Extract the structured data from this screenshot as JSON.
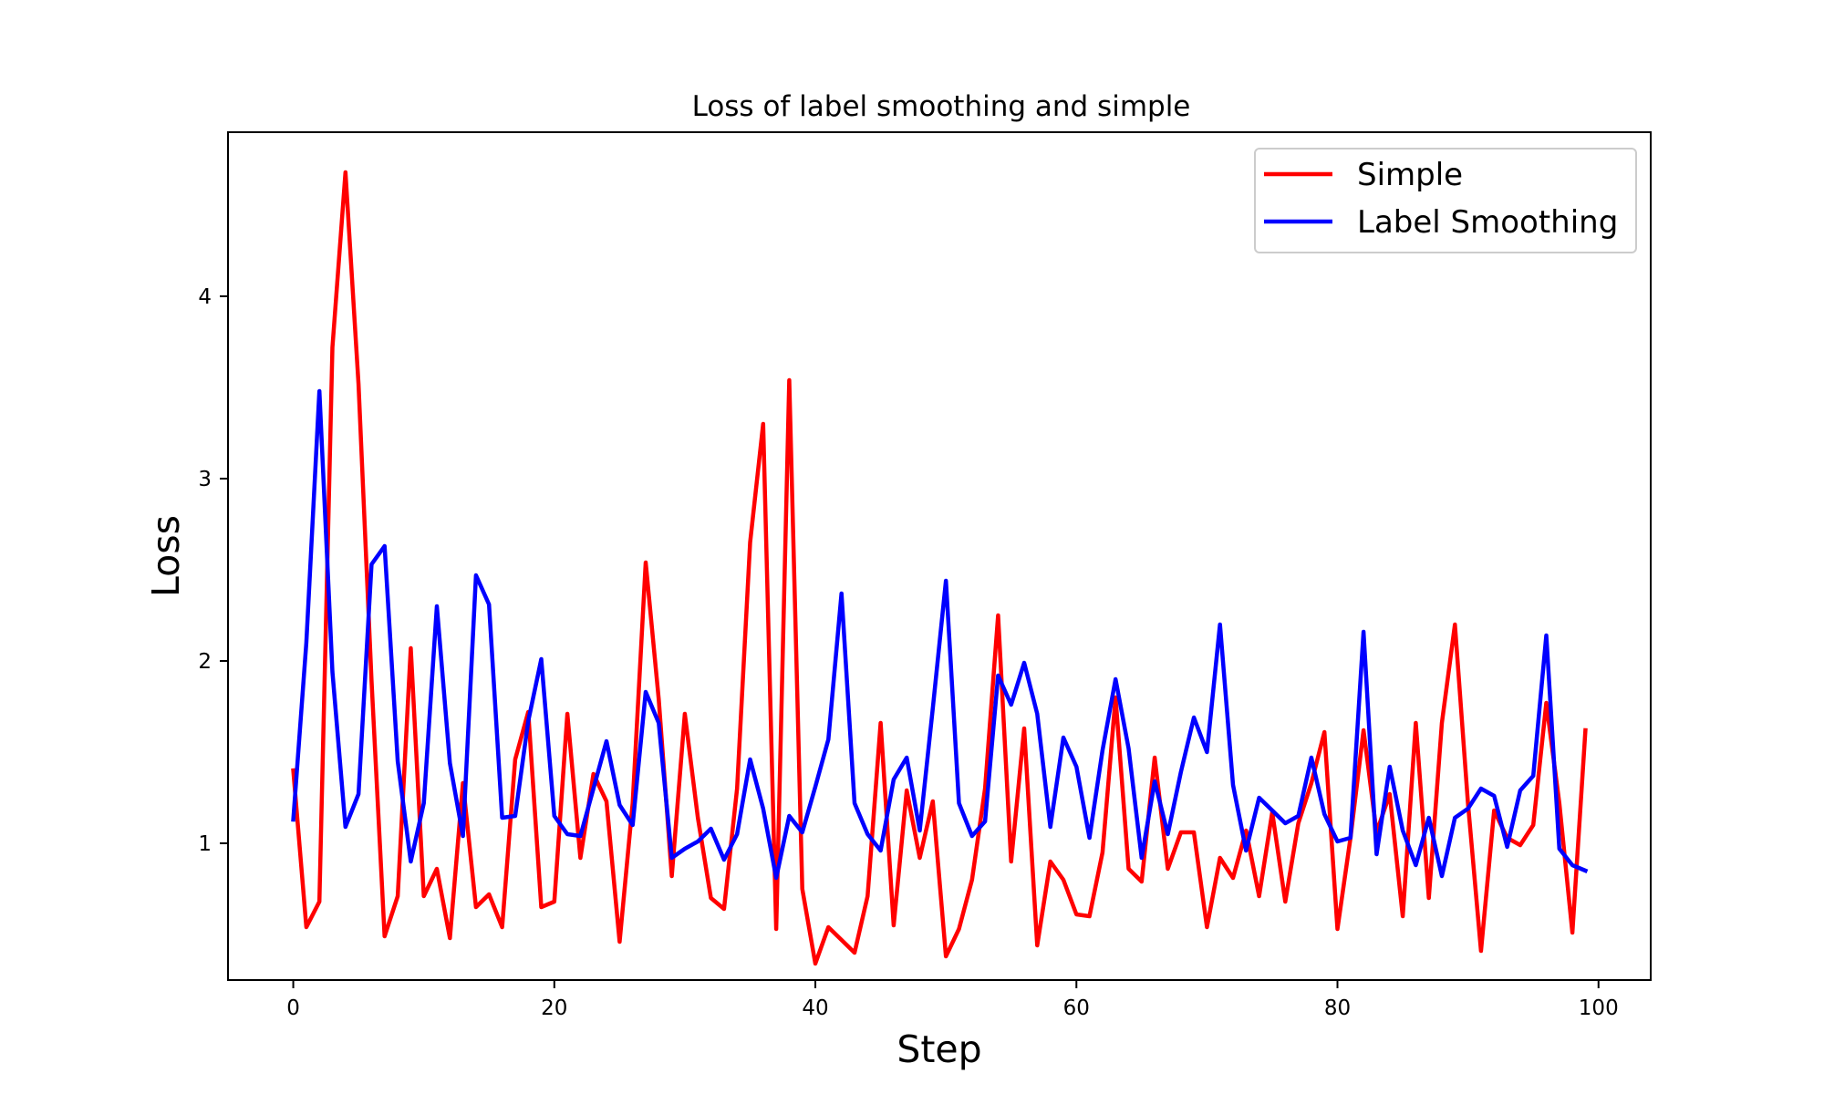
{
  "chart_data": {
    "type": "line",
    "title": "Loss of label smoothing and simple",
    "xlabel": "Step",
    "ylabel": "Loss",
    "xlim": [
      -5,
      104
    ],
    "ylim": [
      0.25,
      4.9
    ],
    "xticks": [
      0,
      20,
      40,
      60,
      80,
      100
    ],
    "yticks": [
      1,
      2,
      3,
      4
    ],
    "grid": false,
    "legend_position": "upper right",
    "series": [
      {
        "name": "Simple",
        "color": "#ff0000",
        "x": [
          0,
          1,
          2,
          3,
          4,
          5,
          6,
          7,
          8,
          9,
          10,
          11,
          12,
          13,
          14,
          15,
          16,
          17,
          18,
          19,
          20,
          21,
          22,
          23,
          24,
          25,
          26,
          27,
          28,
          29,
          30,
          31,
          32,
          33,
          34,
          35,
          36,
          37,
          38,
          39,
          40,
          41,
          42,
          43,
          44,
          45,
          46,
          47,
          48,
          49,
          50,
          51,
          52,
          53,
          54,
          55,
          56,
          57,
          58,
          59,
          60,
          61,
          62,
          63,
          64,
          65,
          66,
          67,
          68,
          69,
          70,
          71,
          72,
          73,
          74,
          75,
          76,
          77,
          78,
          79,
          80,
          81,
          82,
          83,
          84,
          85,
          86,
          87,
          88,
          89,
          90,
          91,
          92,
          93,
          94,
          95,
          96,
          97,
          98,
          99
        ],
        "values": [
          1.4,
          0.54,
          0.68,
          3.72,
          4.68,
          3.52,
          1.89,
          0.49,
          0.71,
          2.07,
          0.71,
          0.86,
          0.48,
          1.33,
          0.65,
          0.72,
          0.54,
          1.46,
          1.72,
          0.65,
          0.68,
          1.71,
          0.92,
          1.38,
          1.23,
          0.46,
          1.22,
          2.54,
          1.79,
          0.82,
          1.71,
          1.14,
          0.7,
          0.64,
          1.3,
          2.65,
          3.3,
          0.53,
          3.54,
          0.75,
          0.34,
          0.54,
          0.47,
          0.4,
          0.71,
          1.66,
          0.55,
          1.29,
          0.92,
          1.23,
          0.38,
          0.53,
          0.8,
          1.3,
          2.25,
          0.9,
          1.63,
          0.44,
          0.9,
          0.8,
          0.61,
          0.6,
          0.95,
          1.8,
          0.86,
          0.79,
          1.47,
          0.86,
          1.06,
          1.06,
          0.54,
          0.92,
          0.81,
          1.07,
          0.71,
          1.17,
          0.68,
          1.11,
          1.33,
          1.61,
          0.53,
          1.03,
          1.62,
          1.06,
          1.27,
          0.6,
          1.66,
          0.7,
          1.66,
          2.2,
          1.22,
          0.41,
          1.18,
          1.03,
          0.99,
          1.1,
          1.77,
          1.22,
          0.51,
          1.62
        ]
      },
      {
        "name": "Label Smoothing",
        "color": "#0000ff",
        "x": [
          0,
          1,
          2,
          3,
          4,
          5,
          6,
          7,
          8,
          9,
          10,
          11,
          12,
          13,
          14,
          15,
          16,
          17,
          18,
          19,
          20,
          21,
          22,
          23,
          24,
          25,
          26,
          27,
          28,
          29,
          30,
          31,
          32,
          33,
          34,
          35,
          36,
          37,
          38,
          39,
          40,
          41,
          42,
          43,
          44,
          45,
          46,
          47,
          48,
          49,
          50,
          51,
          52,
          53,
          54,
          55,
          56,
          57,
          58,
          59,
          60,
          61,
          62,
          63,
          64,
          65,
          66,
          67,
          68,
          69,
          70,
          71,
          72,
          73,
          74,
          75,
          76,
          77,
          78,
          79,
          80,
          81,
          82,
          83,
          84,
          85,
          86,
          87,
          88,
          89,
          90,
          91,
          92,
          93,
          94,
          95,
          96,
          97,
          98,
          99
        ],
        "values": [
          1.13,
          2.1,
          3.48,
          1.94,
          1.09,
          1.27,
          2.53,
          2.63,
          1.45,
          0.9,
          1.22,
          2.3,
          1.44,
          1.04,
          2.47,
          2.31,
          1.14,
          1.15,
          1.67,
          2.01,
          1.15,
          1.05,
          1.04,
          1.3,
          1.56,
          1.21,
          1.1,
          1.83,
          1.66,
          0.92,
          0.97,
          1.01,
          1.08,
          0.91,
          1.05,
          1.46,
          1.19,
          0.81,
          1.15,
          1.06,
          1.31,
          1.57,
          2.37,
          1.22,
          1.05,
          0.96,
          1.35,
          1.47,
          1.07,
          1.74,
          2.44,
          1.22,
          1.04,
          1.12,
          1.92,
          1.76,
          1.99,
          1.71,
          1.09,
          1.58,
          1.42,
          1.03,
          1.51,
          1.9,
          1.52,
          0.92,
          1.34,
          1.05,
          1.39,
          1.69,
          1.5,
          2.2,
          1.32,
          0.96,
          1.25,
          1.18,
          1.11,
          1.15,
          1.47,
          1.16,
          1.01,
          1.03,
          2.16,
          0.94,
          1.42,
          1.07,
          0.88,
          1.14,
          0.82,
          1.14,
          1.19,
          1.3,
          1.26,
          0.98,
          1.29,
          1.37,
          2.14,
          0.97,
          0.88,
          0.85
        ]
      }
    ]
  }
}
